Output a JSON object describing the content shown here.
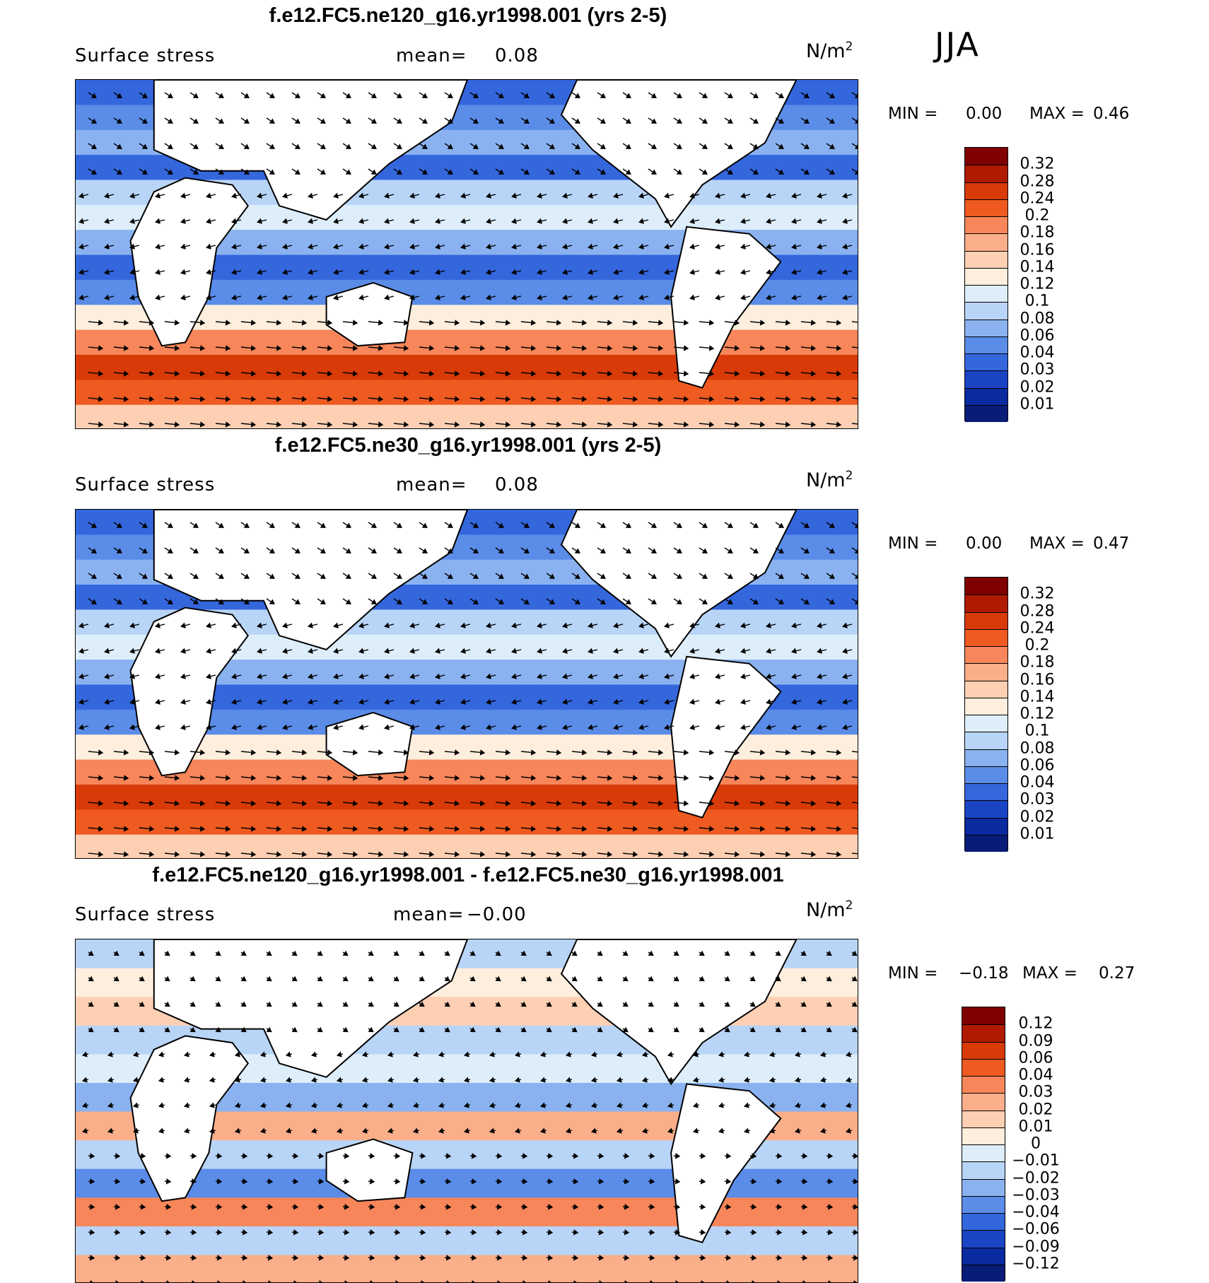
{
  "season": "JJA",
  "panels": [
    {
      "title": "f.e12.FC5.ne120_g16.yr1998.001 (yrs 2-5)",
      "variable": "Surface stress",
      "mean_label": "mean=",
      "mean_value": "0.08",
      "units": "N/m",
      "units_exp": "2",
      "min_label": "MIN =",
      "min_value": "0.00",
      "max_label": "MAX =",
      "max_value": "0.46",
      "colorbar": {
        "labels": [
          "0.32",
          "0.28",
          "0.24",
          "0.2",
          "0.18",
          "0.16",
          "0.14",
          "0.12",
          "0.1",
          "0.08",
          "0.06",
          "0.04",
          "0.03",
          "0.02",
          "0.01"
        ],
        "colors": [
          "#7f0000",
          "#b01a00",
          "#d83a08",
          "#ee5a20",
          "#f7865a",
          "#fbae8a",
          "#fdd0b4",
          "#fdeedd",
          "#ddeefa",
          "#b8d4f6",
          "#8ab2f0",
          "#5a8ce8",
          "#3466dc",
          "#1a44c4",
          "#0a2aa0",
          "#081c78"
        ]
      },
      "map_style": "ne120"
    },
    {
      "title": "f.e12.FC5.ne30_g16.yr1998.001 (yrs 2-5)",
      "variable": "Surface stress",
      "mean_label": "mean=",
      "mean_value": "0.08",
      "units": "N/m",
      "units_exp": "2",
      "min_label": "MIN =",
      "min_value": "0.00",
      "max_label": "MAX =",
      "max_value": "0.47",
      "colorbar": {
        "labels": [
          "0.32",
          "0.28",
          "0.24",
          "0.2",
          "0.18",
          "0.16",
          "0.14",
          "0.12",
          "0.1",
          "0.08",
          "0.06",
          "0.04",
          "0.03",
          "0.02",
          "0.01"
        ],
        "colors": [
          "#7f0000",
          "#b01a00",
          "#d83a08",
          "#ee5a20",
          "#f7865a",
          "#fbae8a",
          "#fdd0b4",
          "#fdeedd",
          "#ddeefa",
          "#b8d4f6",
          "#8ab2f0",
          "#5a8ce8",
          "#3466dc",
          "#1a44c4",
          "#0a2aa0",
          "#081c78"
        ]
      },
      "map_style": "ne30"
    },
    {
      "title": "f.e12.FC5.ne120_g16.yr1998.001 - f.e12.FC5.ne30_g16.yr1998.001",
      "variable": "Surface stress",
      "mean_label": "mean=",
      "mean_value": "−0.00",
      "units": "N/m",
      "units_exp": "2",
      "min_label": "MIN =",
      "min_value": "−0.18",
      "max_label": "MAX =",
      "max_value": "0.27",
      "colorbar": {
        "labels": [
          "0.12",
          "0.09",
          "0.06",
          "0.04",
          "0.03",
          "0.02",
          "0.01",
          "0",
          "−0.01",
          "−0.02",
          "−0.03",
          "−0.04",
          "−0.06",
          "−0.09",
          "−0.12"
        ],
        "colors": [
          "#7f0000",
          "#b01a00",
          "#d83a08",
          "#ee5a20",
          "#f7865a",
          "#fbae8a",
          "#fdd0b4",
          "#fdeedd",
          "#ddeefa",
          "#b8d4f6",
          "#8ab2f0",
          "#5a8ce8",
          "#3466dc",
          "#1a44c4",
          "#0a2aa0",
          "#081c78"
        ]
      },
      "map_style": "diff"
    }
  ]
}
